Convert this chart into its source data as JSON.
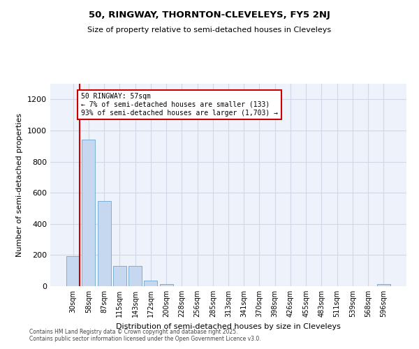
{
  "title1": "50, RINGWAY, THORNTON-CLEVELEYS, FY5 2NJ",
  "title2": "Size of property relative to semi-detached houses in Cleveleys",
  "xlabel": "Distribution of semi-detached houses by size in Cleveleys",
  "ylabel": "Number of semi-detached properties",
  "categories": [
    "30sqm",
    "58sqm",
    "87sqm",
    "115sqm",
    "143sqm",
    "172sqm",
    "200sqm",
    "228sqm",
    "256sqm",
    "285sqm",
    "313sqm",
    "341sqm",
    "370sqm",
    "398sqm",
    "426sqm",
    "455sqm",
    "483sqm",
    "511sqm",
    "539sqm",
    "568sqm",
    "596sqm"
  ],
  "values": [
    192,
    940,
    545,
    130,
    130,
    35,
    12,
    0,
    0,
    0,
    0,
    0,
    0,
    0,
    0,
    0,
    0,
    0,
    0,
    0,
    12
  ],
  "bar_color": "#c5d8f0",
  "bar_edge_color": "#7bafd4",
  "grid_color": "#d0d8e8",
  "bg_color": "#edf2fb",
  "annotation_line1": "50 RINGWAY: 57sqm",
  "annotation_line2": "← 7% of semi-detached houses are smaller (133)",
  "annotation_line3": "93% of semi-detached houses are larger (1,703) →",
  "annotation_box_color": "#ffffff",
  "annotation_box_edge_color": "#cc0000",
  "vline_color": "#cc0000",
  "ylim": [
    0,
    1300
  ],
  "yticks": [
    0,
    200,
    400,
    600,
    800,
    1000,
    1200
  ],
  "footer1": "Contains HM Land Registry data © Crown copyright and database right 2025.",
  "footer2": "Contains public sector information licensed under the Open Government Licence v3.0."
}
